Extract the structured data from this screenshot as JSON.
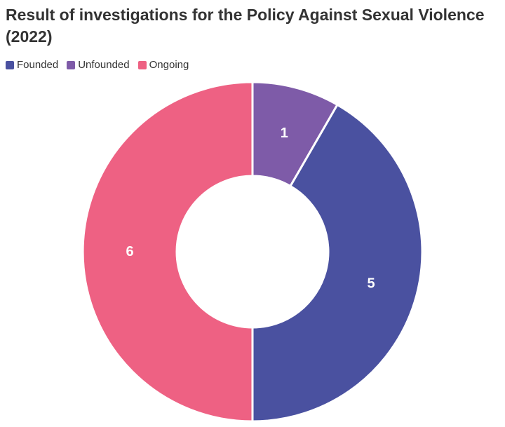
{
  "chart_data": {
    "type": "pie",
    "title": "Result of investigations for the Policy Against Sexual Violence (2022)",
    "donut": true,
    "legend_position": "top-left",
    "slices": [
      {
        "label": "Founded",
        "value": 5,
        "color": "#4a51a0"
      },
      {
        "label": "Unfounded",
        "value": 1,
        "color": "#7e5ba8"
      },
      {
        "label": "Ongoing",
        "value": 6,
        "color": "#ee6183"
      }
    ],
    "drawing_order": [
      "Unfounded",
      "Founded",
      "Ongoing"
    ]
  }
}
